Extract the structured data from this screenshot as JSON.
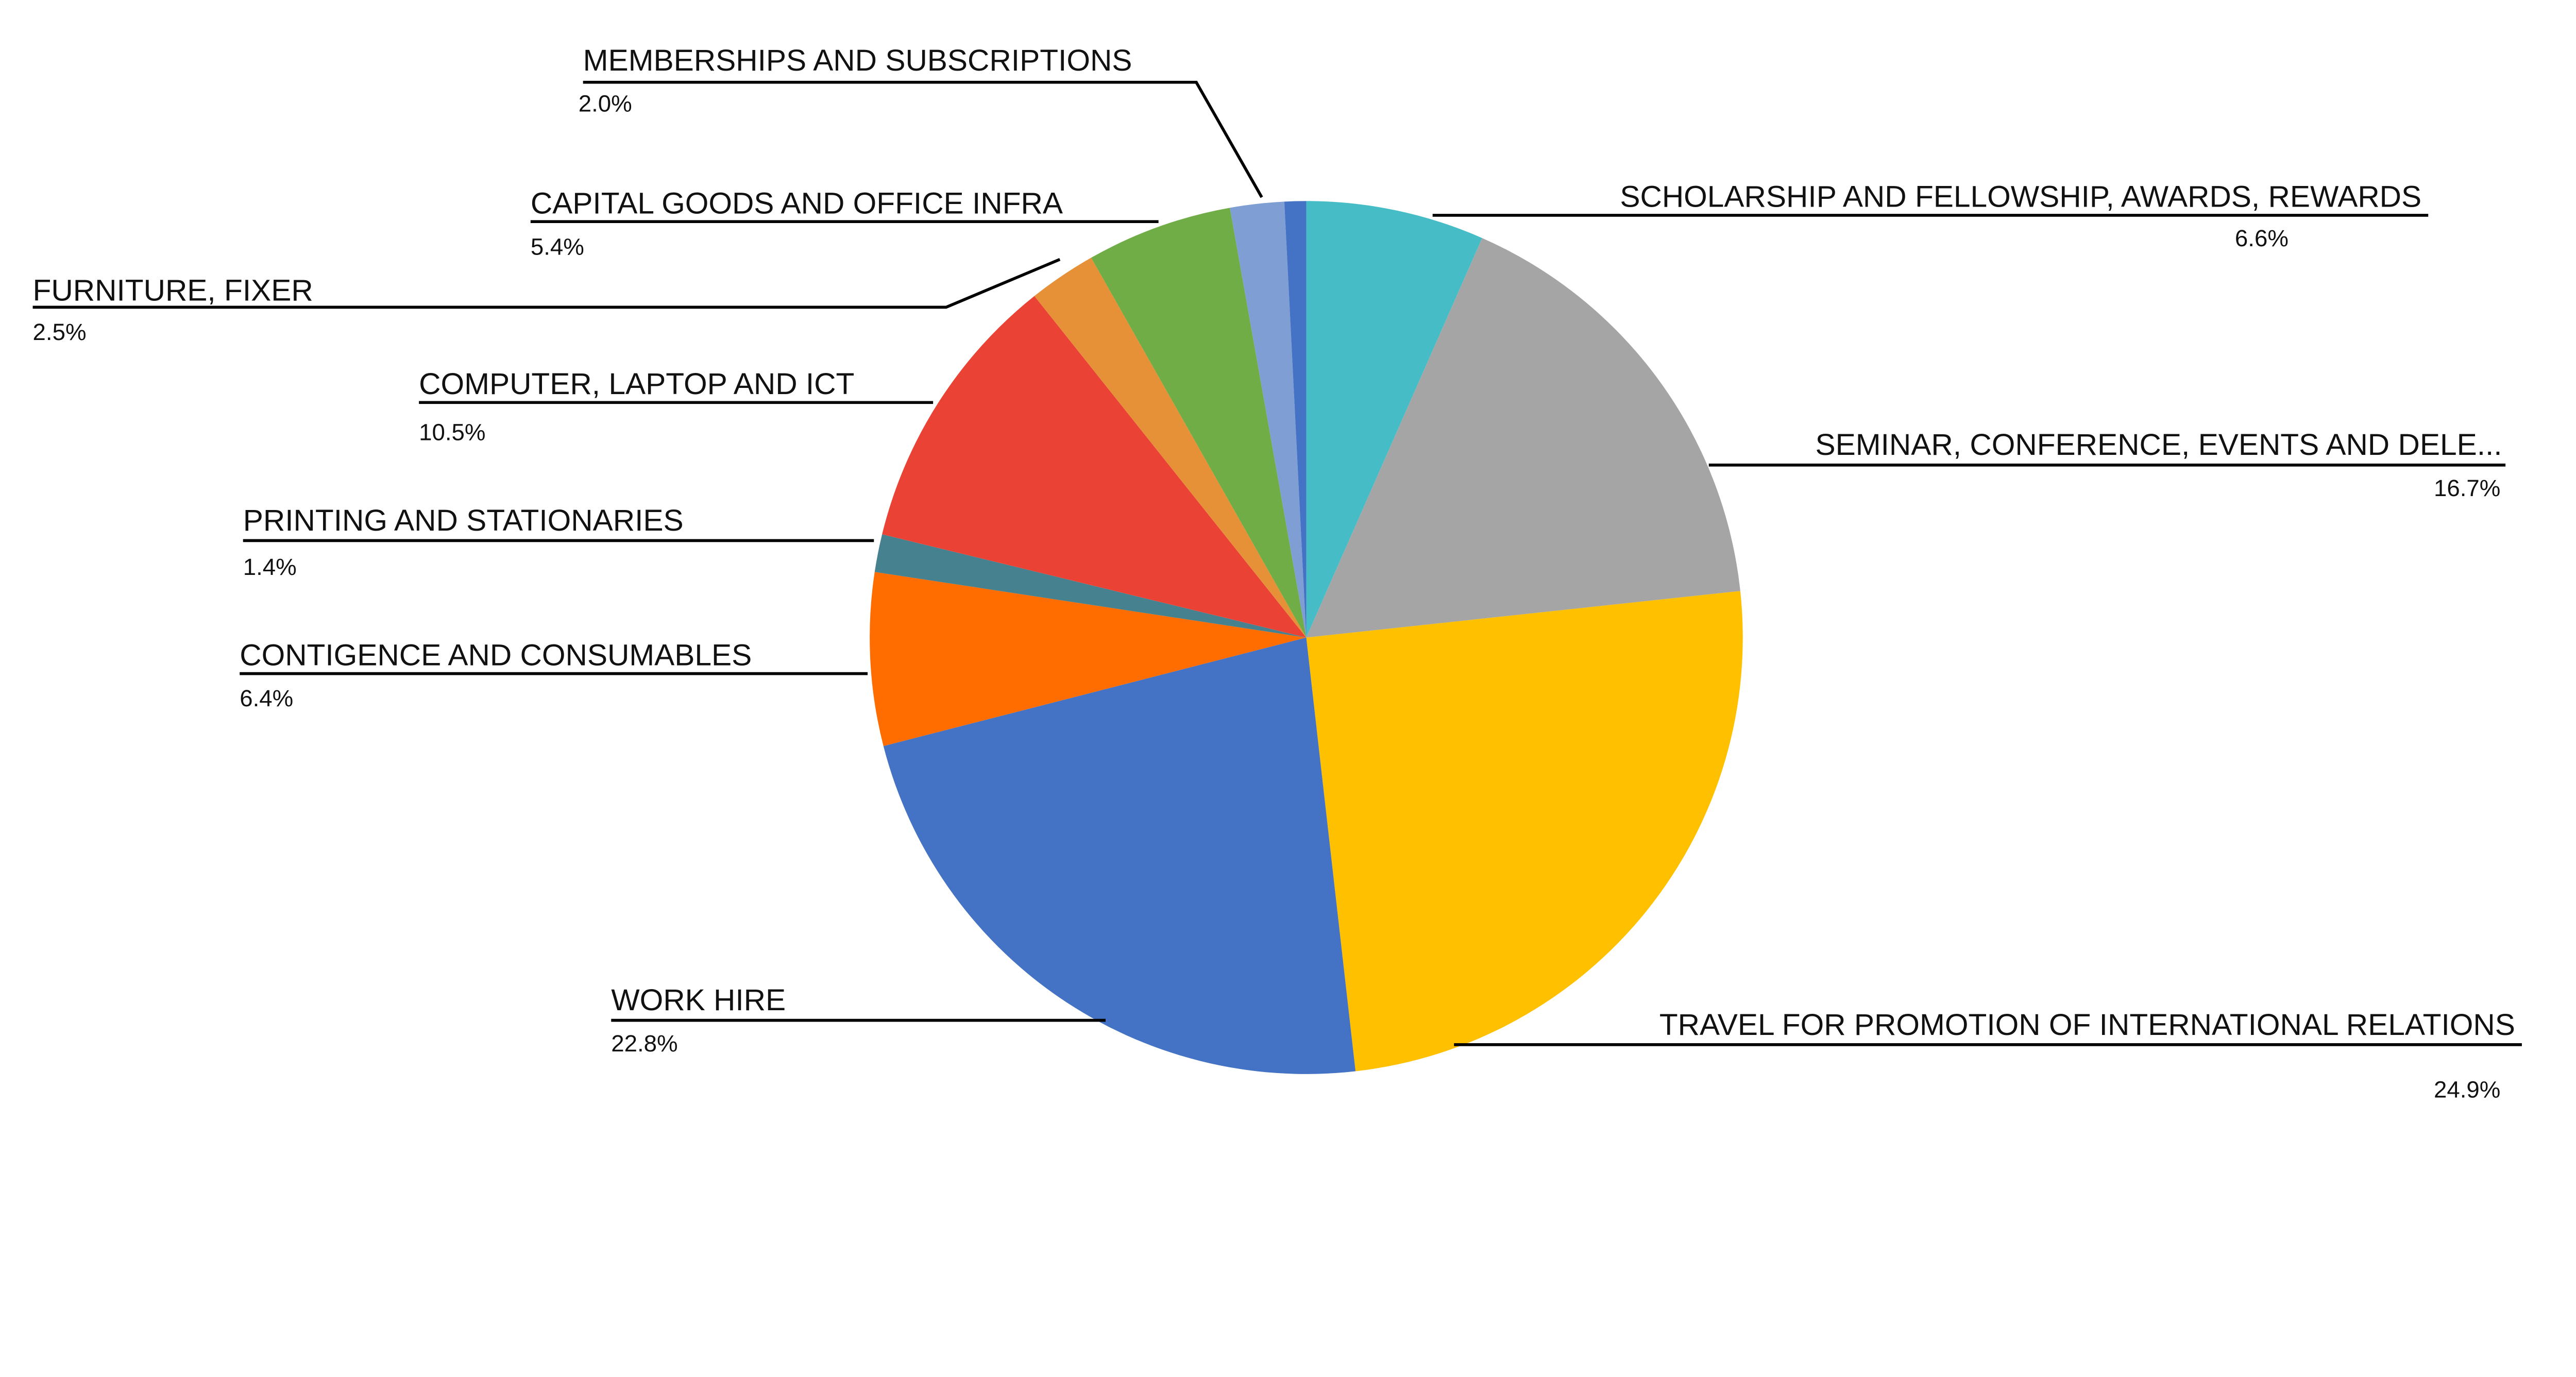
{
  "chart_data": {
    "type": "pie",
    "start_angle": "12 o'clock",
    "direction": "clockwise",
    "slices": [
      {
        "label": "SCHOLARSHIP AND FELLOWSHIP, AWARDS, REWARDS",
        "value": 6.6,
        "display": "6.6%",
        "color": "#46BDC6"
      },
      {
        "label": "SEMINAR, CONFERENCE, EVENTS AND DELE...",
        "value": 16.7,
        "display": "16.7%",
        "color": "#A5A5A5"
      },
      {
        "label": "TRAVEL FOR PROMOTION OF INTERNATIONAL RELATIONS",
        "value": 24.9,
        "display": "24.9%",
        "color": "#FFC000"
      },
      {
        "label": "WORK HIRE",
        "value": 22.8,
        "display": "22.8%",
        "color": "#4472C4"
      },
      {
        "label": "CONTIGENCE AND CONSUMABLES",
        "value": 6.4,
        "display": "6.4%",
        "color": "#FF6D01"
      },
      {
        "label": "PRINTING AND STATIONARIES",
        "value": 1.4,
        "display": "1.4%",
        "color": "#45818E"
      },
      {
        "label": "COMPUTER, LAPTOP AND ICT",
        "value": 10.5,
        "display": "10.5%",
        "color": "#EA4335"
      },
      {
        "label": "FURNITURE, FIXER",
        "value": 2.5,
        "display": "2.5%",
        "color": "#E69138"
      },
      {
        "label": "CAPITAL GOODS AND OFFICE INFRA",
        "value": 5.4,
        "display": "5.4%",
        "color": "#70AD47"
      },
      {
        "label": "MEMBERSHIPS AND SUBSCRIPTIONS",
        "value": 2.0,
        "display": "2.0%",
        "color": "#7E9ED4"
      },
      {
        "label": "",
        "value": 0.8,
        "display": "",
        "color": "#4472C4"
      }
    ]
  }
}
